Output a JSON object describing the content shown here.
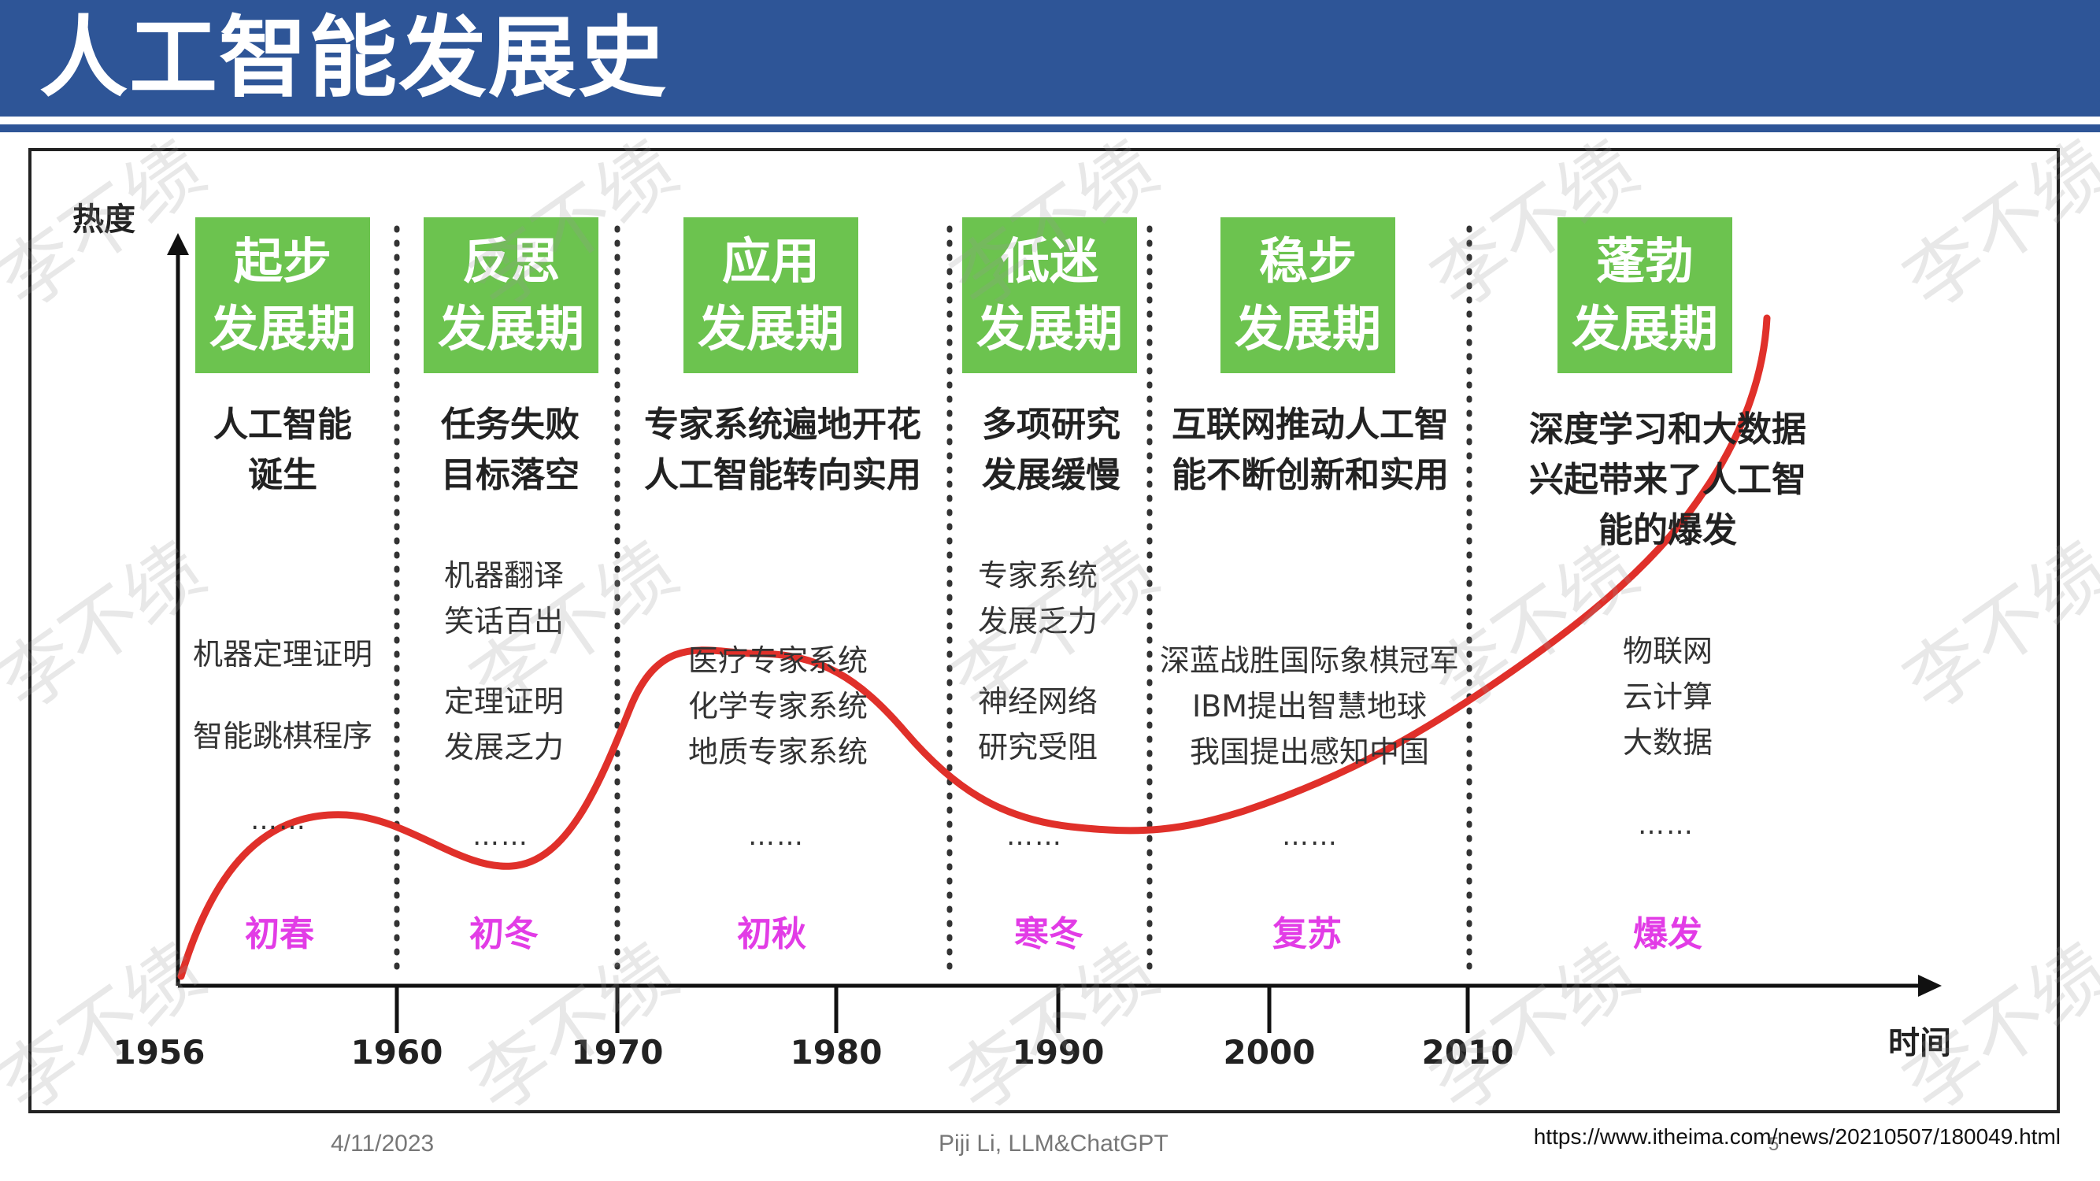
{
  "slide": {
    "title": "人工智能发展史",
    "footer_date": "4/11/2023",
    "footer_author": "Piji Li, LLM&ChatGPT",
    "source_url": "https://www.itheima.com/news/20210507/180049.html",
    "page_number": "5"
  },
  "axis": {
    "y_label": "热度",
    "x_label": "时间"
  },
  "years": [
    "1956",
    "1960",
    "1970",
    "1980",
    "1990",
    "2000",
    "2010"
  ],
  "stages": [
    {
      "line1": "起步",
      "line2": "发展期",
      "desc1": "人工智能",
      "desc2": "诞生",
      "events": [
        "机器定理证明",
        "智能跳棋程序"
      ],
      "dots": "……",
      "season": "初春"
    },
    {
      "line1": "反思",
      "line2": "发展期",
      "desc1": "任务失败",
      "desc2": "目标落空",
      "events": [
        "机器翻译",
        "笑话百出",
        "定理证明",
        "发展乏力"
      ],
      "dots": "……",
      "season": "初冬"
    },
    {
      "line1": "应用",
      "line2": "发展期",
      "desc1": "专家系统遍地开花",
      "desc2": "人工智能转向实用",
      "events": [
        "医疗专家系统",
        "化学专家系统",
        "地质专家系统"
      ],
      "dots": "……",
      "season": "初秋"
    },
    {
      "line1": "低迷",
      "line2": "发展期",
      "desc1": "多项研究",
      "desc2": "发展缓慢",
      "events": [
        "专家系统",
        "发展乏力",
        "神经网络",
        "研究受阻"
      ],
      "dots": "……",
      "season": "寒冬"
    },
    {
      "line1": "稳步",
      "line2": "发展期",
      "desc1": "互联网推动人工智",
      "desc2": "能不断创新和实用",
      "events": [
        "深蓝战胜国际象棋冠军",
        "IBM提出智慧地球",
        "我国提出感知中国"
      ],
      "dots": "……",
      "season": "复苏"
    },
    {
      "line1": "蓬勃",
      "line2": "发展期",
      "desc1": "深度学习和大数据",
      "desc2": "兴起带来了人工智",
      "desc3": "能的爆发",
      "events": [
        "物联网",
        "云计算",
        "大数据"
      ],
      "dots": "……",
      "season": "爆发"
    }
  ],
  "watermark": "李不绩",
  "colors": {
    "header": "#2e5597",
    "stage_box": "#6cc34f",
    "curve": "#e0302a",
    "season": "#e23ce6"
  }
}
